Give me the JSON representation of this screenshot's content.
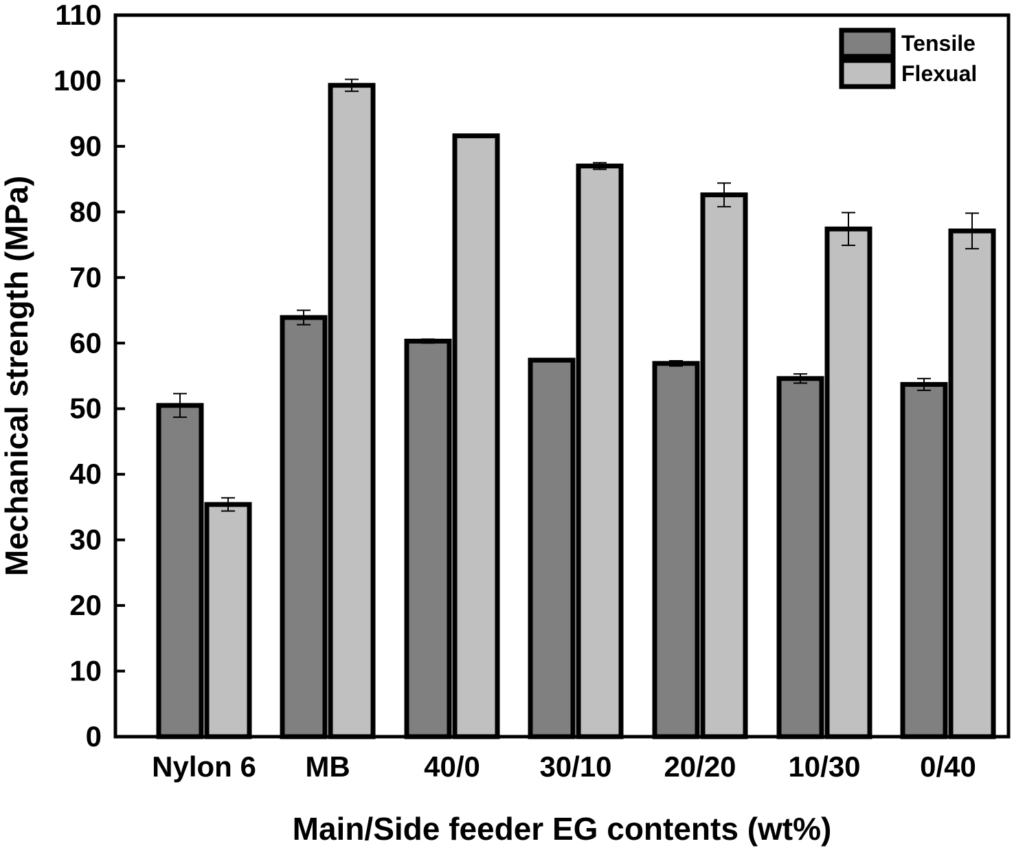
{
  "chart_data": {
    "type": "bar",
    "xlabel": "Main/Side feeder EG contents (wt%)",
    "ylabel": "Mechanical strength (MPa)",
    "ylim": [
      0,
      110
    ],
    "yticks": [
      0,
      10,
      20,
      30,
      40,
      50,
      60,
      70,
      80,
      90,
      100,
      110
    ],
    "yticks_text": [
      "0",
      "10",
      "20",
      "30",
      "40",
      "50",
      "60",
      "70",
      "80",
      "90",
      "100",
      "110"
    ],
    "categories": [
      "Nylon 6",
      "MB",
      "40/0",
      "30/10",
      "20/20",
      "10/30",
      "0/40"
    ],
    "series": [
      {
        "name": "Tensile",
        "color": "#808080",
        "values": [
          50.5,
          63.9,
          60.3,
          57.4,
          56.9,
          54.6,
          53.7
        ],
        "errors": [
          1.8,
          1.1,
          0.3,
          0.2,
          0.4,
          0.7,
          0.9
        ]
      },
      {
        "name": "Flexual",
        "color": "#c0c0c0",
        "values": [
          35.4,
          99.3,
          91.6,
          87.0,
          82.6,
          77.4,
          77.1
        ],
        "errors": [
          1.0,
          0.9,
          0.1,
          0.5,
          1.8,
          2.5,
          2.7
        ]
      }
    ],
    "legend_position": "top-right",
    "grid": false
  }
}
